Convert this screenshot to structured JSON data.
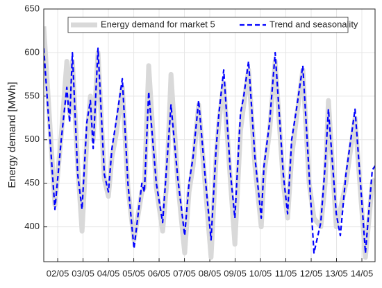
{
  "chart_data": {
    "type": "line",
    "y_label": "Energy demand [MWh]",
    "x": [
      1.45,
      1.89,
      2.14,
      2.36,
      2.47,
      2.58,
      2.79,
      2.96,
      3.15,
      3.29,
      3.4,
      3.59,
      3.84,
      4.0,
      4.14,
      4.3,
      4.55,
      4.77,
      5.01,
      5.32,
      5.42,
      5.59,
      5.89,
      6.14,
      6.3,
      6.47,
      6.74,
      7.01,
      7.18,
      7.34,
      7.56,
      7.84,
      8.05,
      8.25,
      8.36,
      8.55,
      8.82,
      8.99,
      9.21,
      9.34,
      9.53,
      9.78,
      10.03,
      10.14,
      10.36,
      10.58,
      10.9,
      11.07,
      11.23,
      11.42,
      11.67,
      11.92,
      12.11,
      12.38,
      12.55,
      12.68,
      12.99,
      13.15,
      13.37,
      13.73,
      13.97,
      14.14,
      14.41,
      14.52
    ],
    "series": [
      {
        "name": "Energy demand for market 5",
        "color": "#d9d9d9",
        "style": "solid",
        "values": [
          630,
          425,
          505,
          590,
          530,
          590,
          470,
          395,
          500,
          550,
          500,
          600,
          455,
          435,
          480,
          505,
          560,
          445,
          385,
          440,
          445,
          585,
          445,
          395,
          450,
          575,
          450,
          370,
          440,
          470,
          540,
          440,
          365,
          480,
          520,
          565,
          450,
          380,
          510,
          540,
          580,
          470,
          400,
          460,
          510,
          590,
          450,
          410,
          480,
          525,
          580,
          450,
          410,
          400,
          450,
          545,
          400,
          420,
          450,
          525,
          430,
          365,
          450,
          455
        ]
      },
      {
        "name": "Trend and seasonality",
        "color": "#0000ff",
        "style": "dashed",
        "values": [
          605,
          420,
          500,
          560,
          520,
          600,
          460,
          420,
          520,
          545,
          490,
          605,
          460,
          440,
          490,
          520,
          570,
          450,
          375,
          450,
          440,
          555,
          450,
          405,
          470,
          540,
          455,
          390,
          450,
          480,
          545,
          450,
          385,
          490,
          530,
          580,
          460,
          410,
          530,
          550,
          590,
          480,
          410,
          470,
          520,
          600,
          460,
          415,
          500,
          535,
          585,
          460,
          370,
          405,
          470,
          535,
          415,
          390,
          460,
          535,
          440,
          370,
          465,
          470
        ]
      }
    ],
    "xlim": [
      1.45,
      14.52
    ],
    "xticks": [
      {
        "value": 2,
        "label": "02/05"
      },
      {
        "value": 3,
        "label": "03/05"
      },
      {
        "value": 4,
        "label": "04/05"
      },
      {
        "value": 5,
        "label": "05/05"
      },
      {
        "value": 6,
        "label": "06/05"
      },
      {
        "value": 7,
        "label": "07/05"
      },
      {
        "value": 8,
        "label": "08/05"
      },
      {
        "value": 9,
        "label": "09/05"
      },
      {
        "value": 10,
        "label": "10/05"
      },
      {
        "value": 11,
        "label": "11/05"
      },
      {
        "value": 12,
        "label": "12/05"
      },
      {
        "value": 13,
        "label": "13/05"
      },
      {
        "value": 14,
        "label": "14/05"
      }
    ],
    "ylim": [
      360,
      650
    ],
    "yticks": [
      400,
      450,
      500,
      550,
      600,
      650
    ],
    "grid": true,
    "legend": "top"
  }
}
